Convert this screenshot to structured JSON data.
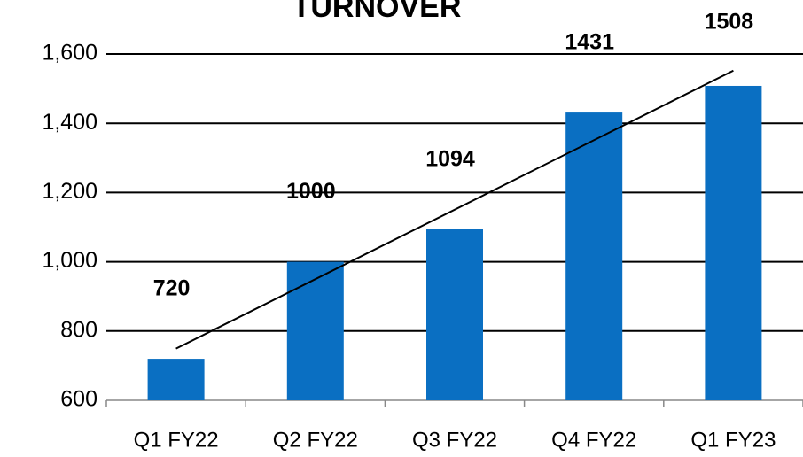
{
  "chart_data": {
    "type": "bar",
    "title": "TURNOVER",
    "categories": [
      "Q1 FY22",
      "Q2 FY22",
      "Q3 FY22",
      "Q4 FY22",
      "Q1 FY23"
    ],
    "values": [
      720,
      1000,
      1094,
      1431,
      1508
    ],
    "color": "#0a6fc2",
    "ylim": [
      600,
      1600
    ],
    "yticks": [
      600,
      800,
      {
        "value": 1000,
        "label": "1,000"
      },
      {
        "value": 1200,
        "label": "1,200"
      },
      {
        "value": 1400,
        "label": "1,400"
      },
      {
        "value": 1600,
        "label": "1,600"
      }
    ],
    "grid": true,
    "trendline": true
  }
}
